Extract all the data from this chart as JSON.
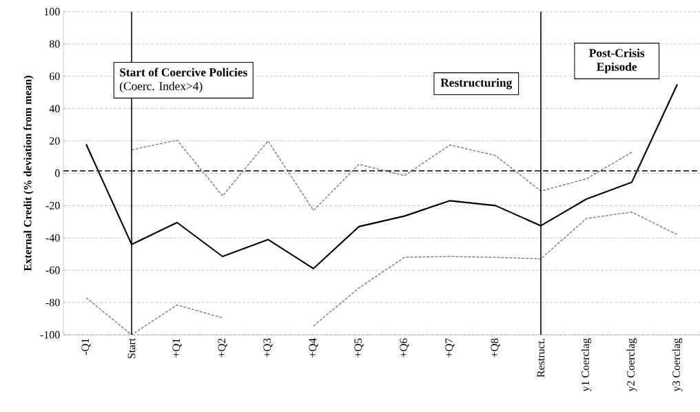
{
  "chart_data": {
    "type": "line",
    "ylabel": "External Credit   (% deviation from mean)",
    "categories": [
      "-Q1",
      "Start",
      "+Q1",
      "+Q2",
      "+Q3",
      "+Q4",
      "+Q5",
      "+Q6",
      "+Q7",
      "+Q8",
      "Restruct.",
      "y1 Coerclag",
      "y2 Coerclag",
      "y3 Coerclag"
    ],
    "series": [
      {
        "color": "#808080",
        "line_style": "dashed",
        "values": [
          null,
          14.5,
          20.5,
          -14,
          20,
          -23,
          5.5,
          -1.5,
          17.5,
          11,
          -11,
          -3.5,
          13,
          null
        ]
      },
      {
        "color": "#808080",
        "line_style": "dashed",
        "values": [
          -77,
          -100,
          -81.5,
          -89.5,
          null,
          -94.5,
          -71,
          -52,
          -51.5,
          -52,
          -53,
          -28,
          -24,
          -38
        ]
      },
      {
        "color": "#000000",
        "line_style": "solid",
        "values": [
          18,
          -44,
          -30.5,
          -51.5,
          -41,
          -59,
          -33,
          -26.5,
          -17,
          -20,
          -32.5,
          -16,
          -5.5,
          55
        ]
      }
    ],
    "ylim": [
      -100,
      100
    ],
    "yticks": [
      -100,
      -80,
      -60,
      -40,
      -20,
      0,
      20,
      40,
      60,
      80,
      100
    ],
    "grid": "y",
    "ref_lines": [
      {
        "axis": "y",
        "value": 1.5,
        "color": "#404040",
        "line_style": "dashed"
      },
      {
        "axis": "x",
        "value": "Start",
        "color": "#000000"
      },
      {
        "axis": "x",
        "value": "Restruct.",
        "color": "#000000"
      }
    ],
    "annotations": [
      "Start of Coercive Policies",
      "(Coerc. Index>4)",
      "Restructuring",
      "Post-Crisis Episode"
    ]
  }
}
